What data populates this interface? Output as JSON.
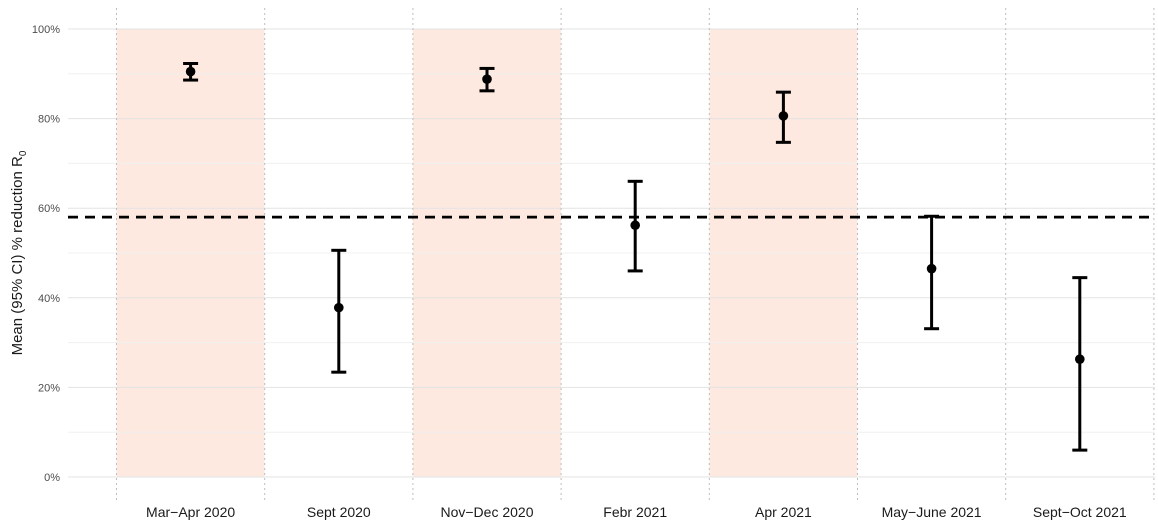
{
  "chart_data": {
    "type": "scatter",
    "subtype": "point-with-error-bars",
    "ylabel_main": "Mean (95% CI) % reduction R",
    "ylabel_subscript": "0",
    "xlabel": "",
    "title": "",
    "ylim": [
      0,
      100
    ],
    "y_ticks": [
      0,
      20,
      40,
      60,
      80,
      100
    ],
    "y_tick_labels": [
      "0%",
      "20%",
      "40%",
      "60%",
      "80%",
      "100%"
    ],
    "categories": [
      "Mar−Apr 2020",
      "Sept 2020",
      "Nov−Dec 2020",
      "Febr 2021",
      "Apr 2021",
      "May−June 2021",
      "Sept−Oct 2021"
    ],
    "means": [
      90.5,
      37.8,
      88.8,
      56.2,
      80.6,
      46.5,
      26.3
    ],
    "ci_lower": [
      88.6,
      23.4,
      86.2,
      46.0,
      74.7,
      33.1,
      6.0
    ],
    "ci_upper": [
      92.3,
      50.6,
      91.2,
      66.0,
      85.9,
      58.2,
      44.5
    ],
    "highlighted_categories": [
      "Mar−Apr 2020",
      "Nov−Dec 2020",
      "Apr 2021"
    ],
    "reference_line": 58.0,
    "grid": true,
    "legend": "none",
    "colors": {
      "highlight": "#fde9e0",
      "point": "#000000",
      "reference_line": "#000000",
      "grid_major": "#e3e3e3",
      "grid_minor": "#f0f0f0",
      "vertical_divider": "#bdbdbd"
    }
  }
}
